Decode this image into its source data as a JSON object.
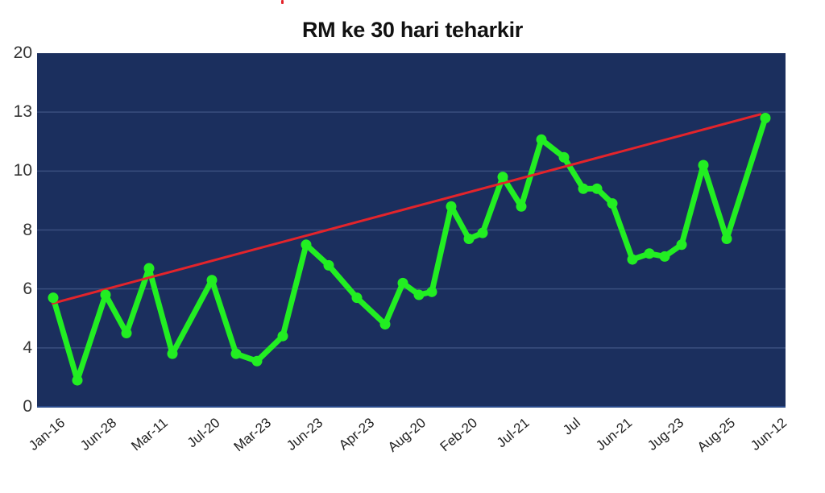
{
  "chart_data": {
    "type": "line",
    "title": "RM ke 30 hari teharkir",
    "xlabel": "",
    "ylabel": "",
    "y_tick_labels": [
      "20",
      "13",
      "10",
      "8",
      "6",
      "4",
      "0"
    ],
    "y_tick_values": [
      20,
      13,
      10,
      8,
      6,
      4,
      0
    ],
    "x_tick_labels": [
      "Jan-16",
      "Jun-28",
      "Mar-11",
      "Jul-20",
      "Mar-23",
      "Jun-23",
      "Apr-23",
      "Aug-20",
      "Feb-20",
      "Jul-21",
      "Jul",
      "Jun-21",
      "Jug-23",
      "Aug-25",
      "Jun-12"
    ],
    "grid": true,
    "legend": "none",
    "series": [
      {
        "name": "RM",
        "color": "#22ee22",
        "marker": "circle",
        "values": [
          5.7,
          1.8,
          5.8,
          4.5,
          6.7,
          3.6,
          6.3,
          3.6,
          3.1,
          4.4,
          7.5,
          6.8,
          5.7,
          4.8,
          6.2,
          5.8,
          5.9,
          8.8,
          7.7,
          7.9,
          9.8,
          8.8,
          11.6,
          10.7,
          9.4,
          9.4,
          8.9,
          7.0,
          7.2,
          7.1,
          7.5,
          10.3,
          7.7,
          12.7
        ]
      },
      {
        "name": "Trend",
        "type": "linear-trendline",
        "color": "#e3242b",
        "start": 5.5,
        "end": 12.9
      }
    ],
    "plot_background": "#1b2f5e",
    "gridline_color": "#3a4f7e"
  }
}
